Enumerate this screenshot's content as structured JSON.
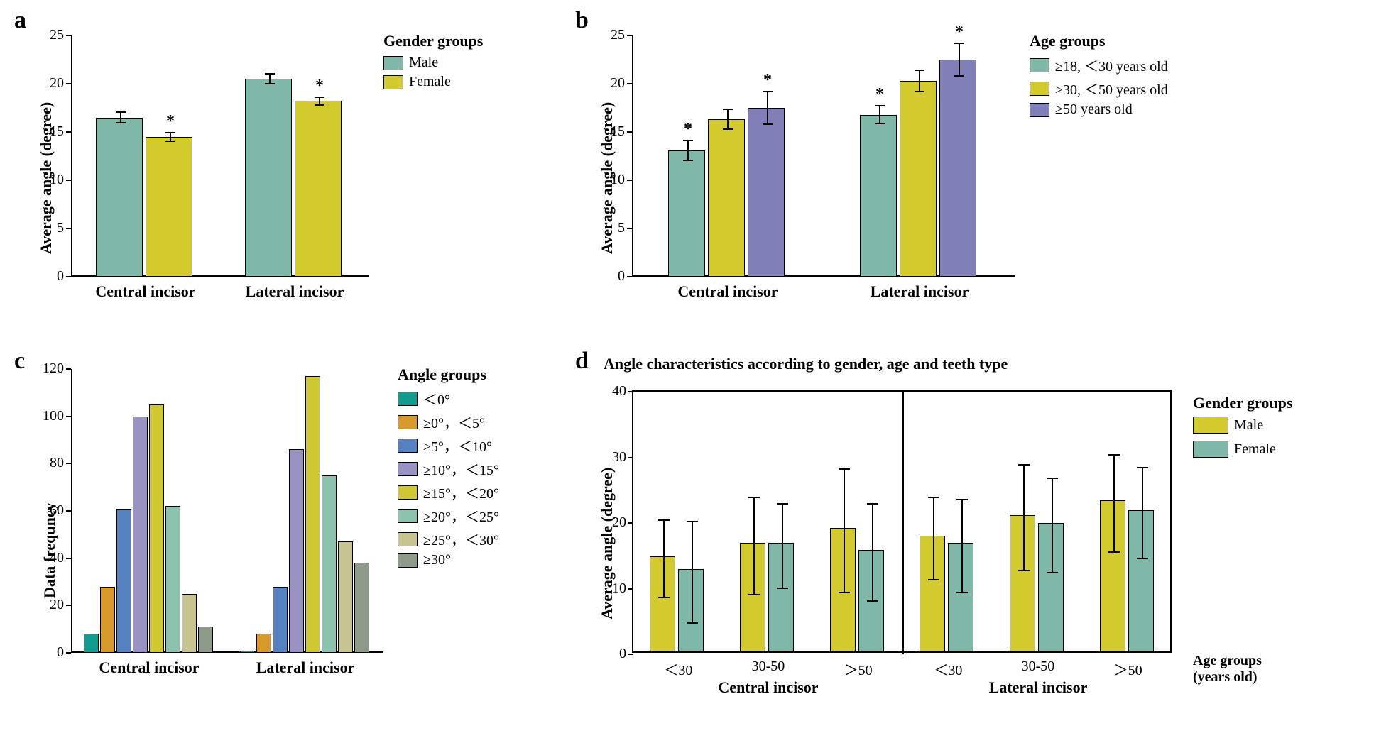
{
  "colors": {
    "teal": "#7fb8a9",
    "yellow": "#d3cb2d",
    "purple": "#817fb8",
    "teal_dark": "#0f9d8f",
    "orange": "#d79a2a",
    "blue": "#5581c1",
    "lavender": "#9893c3",
    "olive": "#cfc830",
    "seafoam": "#8cc3ae",
    "khaki": "#c8c390",
    "gray": "#8e9a8a",
    "bg": "#ffffff",
    "axis": "#000000"
  },
  "panel_a": {
    "label": "a",
    "type": "bar",
    "ylabel": "Average angle (degree)",
    "ylim": [
      0,
      25
    ],
    "ytick_step": 5,
    "categories": [
      "Central incisor",
      "Lateral incisor"
    ],
    "groups": [
      "Male",
      "Female"
    ],
    "bar_colors": [
      "#7fb8a9",
      "#d3cb2d"
    ],
    "values": [
      [
        16.5,
        14.5
      ],
      [
        20.5,
        18.2
      ]
    ],
    "errors": [
      [
        0.6,
        0.5
      ],
      [
        0.6,
        0.5
      ]
    ],
    "sig_marks": [
      [
        false,
        true
      ],
      [
        false,
        true
      ]
    ],
    "legend_title": "Gender groups",
    "legend_labels": [
      "Male",
      "Female"
    ]
  },
  "panel_b": {
    "label": "b",
    "type": "bar",
    "ylabel": "Average angle (degree)",
    "ylim": [
      0,
      25
    ],
    "ytick_step": 5,
    "categories": [
      "Central incisor",
      "Lateral incisor"
    ],
    "groups": [
      "g1",
      "g2",
      "g3"
    ],
    "bar_colors": [
      "#7fb8a9",
      "#d3cb2d",
      "#817fb8"
    ],
    "values": [
      [
        13.1,
        16.3,
        17.5
      ],
      [
        16.8,
        20.3,
        22.5
      ]
    ],
    "errors": [
      [
        1.1,
        1.1,
        1.8
      ],
      [
        1.0,
        1.2,
        1.8
      ]
    ],
    "sig_marks": [
      [
        true,
        false,
        true
      ],
      [
        true,
        false,
        true
      ]
    ],
    "legend_title": "Age groups",
    "legend_labels": [
      "≥18, ＜30 years old",
      "≥30, ＜50 years old",
      "≥50 years old"
    ]
  },
  "panel_c": {
    "label": "c",
    "type": "bar",
    "ylabel": "Data frequncy",
    "ylim": [
      0,
      120
    ],
    "ytick_step": 20,
    "categories": [
      "Central incisor",
      "Lateral incisor"
    ],
    "groups": [
      "a0",
      "a1",
      "a2",
      "a3",
      "a4",
      "a5",
      "a6",
      "a7"
    ],
    "bar_colors": [
      "#0f9d8f",
      "#d79a2a",
      "#5581c1",
      "#9893c3",
      "#cfc830",
      "#8cc3ae",
      "#c8c390",
      "#8e9a8a"
    ],
    "values": [
      [
        8,
        28,
        61,
        100,
        105,
        62,
        25,
        11
      ],
      [
        1,
        8,
        28,
        86,
        117,
        75,
        47,
        38
      ]
    ],
    "legend_title": "Angle groups",
    "legend_labels": [
      "＜0°",
      "≥0°，＜5°",
      "≥5°，＜10°",
      "≥10°，＜15°",
      "≥15°，＜20°",
      "≥20°，＜25°",
      "≥25°，＜30°",
      "≥30°"
    ]
  },
  "panel_d": {
    "label": "d",
    "title": "Angle characteristics according to gender, age and teeth type",
    "type": "bar",
    "ylabel": "Average angle (degree)",
    "ylim": [
      0,
      40
    ],
    "ytick_step": 10,
    "age_cats": [
      "＜30",
      "30-50",
      "＞50"
    ],
    "teeth": [
      "Central incisor",
      "Lateral incisor"
    ],
    "groups": [
      "Male",
      "Female"
    ],
    "bar_colors": [
      "#d3cb2d",
      "#7fb8a9"
    ],
    "values": [
      [
        [
          14.5,
          12.5
        ],
        [
          16.5,
          16.5
        ],
        [
          18.8,
          15.5
        ]
      ],
      [
        [
          17.6,
          16.5
        ],
        [
          20.8,
          19.6
        ],
        [
          23.0,
          21.5
        ]
      ]
    ],
    "errors": [
      [
        [
          6.0,
          7.8
        ],
        [
          7.5,
          6.5
        ],
        [
          9.5,
          7.5
        ]
      ],
      [
        [
          6.4,
          7.2
        ],
        [
          8.2,
          7.3
        ],
        [
          7.5,
          7.0
        ]
      ]
    ],
    "legend_title": "Gender groups",
    "legend_labels": [
      "Male",
      "Female"
    ],
    "xlabel_right": "Age groups\n(years old)"
  }
}
